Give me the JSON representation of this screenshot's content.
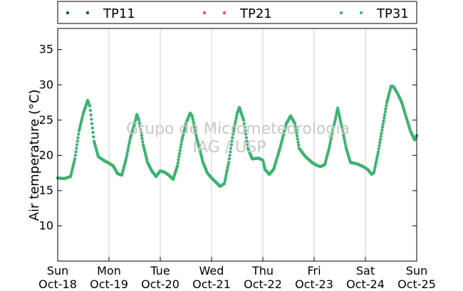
{
  "chart_data": {
    "type": "scatter",
    "title": "",
    "xlabel": "",
    "ylabel": "Air temperature (°C)",
    "ylim": [
      5,
      38
    ],
    "yticks": [
      10,
      15,
      20,
      25,
      30,
      35
    ],
    "xlim": [
      "2015-10-18 00:00",
      "2015-10-25 00:00"
    ],
    "x_tick_labels": [
      [
        "Sun",
        "Oct-18"
      ],
      [
        "Mon",
        "Oct-19"
      ],
      [
        "Tue",
        "Oct-20"
      ],
      [
        "Wed",
        "Oct-21"
      ],
      [
        "Thu",
        "Oct-22"
      ],
      [
        "Fri",
        "Oct-23"
      ],
      [
        "Sat",
        "Oct-24"
      ],
      [
        "Sun",
        "Oct-25"
      ]
    ],
    "grid": "vertical",
    "legend_position": "top",
    "watermark": [
      "Grupo de Micrometeorologia",
      "IAG / USP"
    ],
    "series": [
      {
        "name": "TP11",
        "color": "#1f4e79",
        "points": []
      },
      {
        "name": "TP21",
        "color": "#cd5c5c",
        "points": []
      },
      {
        "name": "TP31",
        "color": "#3cb371",
        "points": [
          [
            "10-18 00:00",
            16.8
          ],
          [
            "10-18 03:00",
            16.7
          ],
          [
            "10-18 06:00",
            17.0
          ],
          [
            "10-18 08:00",
            19.5
          ],
          [
            "10-18 10:00",
            23.5
          ],
          [
            "10-18 12:00",
            26.0
          ],
          [
            "10-18 14:00",
            27.8
          ],
          [
            "10-18 15:00",
            27.0
          ],
          [
            "10-18 17:00",
            22.0
          ],
          [
            "10-18 19:00",
            19.8
          ],
          [
            "10-18 22:00",
            19.2
          ],
          [
            "10-19 00:00",
            18.9
          ],
          [
            "10-19 02:00",
            18.5
          ],
          [
            "10-19 04:00",
            17.4
          ],
          [
            "10-19 06:00",
            17.2
          ],
          [
            "10-19 08:00",
            19.5
          ],
          [
            "10-19 10:00",
            22.5
          ],
          [
            "10-19 12:00",
            24.5
          ],
          [
            "10-19 13:00",
            25.8
          ],
          [
            "10-19 14:00",
            25.0
          ],
          [
            "10-19 16:00",
            21.5
          ],
          [
            "10-19 18:00",
            19.0
          ],
          [
            "10-19 20:00",
            17.8
          ],
          [
            "10-19 22:00",
            17.0
          ],
          [
            "10-20 00:00",
            17.8
          ],
          [
            "10-20 02:00",
            17.6
          ],
          [
            "10-20 04:00",
            17.2
          ],
          [
            "10-20 06:00",
            16.6
          ],
          [
            "10-20 08:00",
            18.5
          ],
          [
            "10-20 10:00",
            22.0
          ],
          [
            "10-20 12:00",
            24.5
          ],
          [
            "10-20 14:00",
            26.0
          ],
          [
            "10-20 15:00",
            25.5
          ],
          [
            "10-20 17:00",
            22.5
          ],
          [
            "10-20 20:00",
            19.0
          ],
          [
            "10-20 22:00",
            17.5
          ],
          [
            "10-21 00:00",
            16.8
          ],
          [
            "10-21 02:00",
            16.2
          ],
          [
            "10-21 04:00",
            15.6
          ],
          [
            "10-21 06:00",
            16.0
          ],
          [
            "10-21 08:00",
            19.0
          ],
          [
            "10-21 10:00",
            23.0
          ],
          [
            "10-21 12:00",
            26.0
          ],
          [
            "10-21 13:00",
            26.8
          ],
          [
            "10-21 15:00",
            25.0
          ],
          [
            "10-21 17:00",
            21.0
          ],
          [
            "10-21 19:00",
            19.5
          ],
          [
            "10-21 22:00",
            19.6
          ],
          [
            "10-22 00:00",
            19.3
          ],
          [
            "10-22 01:00",
            18.0
          ],
          [
            "10-22 03:00",
            17.3
          ],
          [
            "10-22 05:00",
            18.0
          ],
          [
            "10-22 08:00",
            21.0
          ],
          [
            "10-22 11:00",
            24.5
          ],
          [
            "10-22 13:00",
            25.6
          ],
          [
            "10-22 15:00",
            24.5
          ],
          [
            "10-22 17:00",
            21.0
          ],
          [
            "10-22 20:00",
            19.8
          ],
          [
            "10-22 23:00",
            19.0
          ],
          [
            "10-23 01:00",
            18.6
          ],
          [
            "10-23 03:00",
            18.4
          ],
          [
            "10-23 05:00",
            18.7
          ],
          [
            "10-23 07:00",
            21.0
          ],
          [
            "10-23 09:00",
            24.0
          ],
          [
            "10-23 10:00",
            25.2
          ],
          [
            "10-23 11:00",
            26.7
          ],
          [
            "10-23 13:00",
            24.0
          ],
          [
            "10-23 15:00",
            21.0
          ],
          [
            "10-23 17:00",
            19.0
          ],
          [
            "10-23 20:00",
            18.8
          ],
          [
            "10-23 23:00",
            18.4
          ],
          [
            "10-24 01:00",
            18.0
          ],
          [
            "10-24 03:00",
            17.3
          ],
          [
            "10-24 04:00",
            17.6
          ],
          [
            "10-24 06:00",
            20.5
          ],
          [
            "10-24 08:00",
            24.0
          ],
          [
            "10-24 10:00",
            27.5
          ],
          [
            "10-24 12:00",
            29.8
          ],
          [
            "10-24 13:00",
            29.8
          ],
          [
            "10-24 15:00",
            28.8
          ],
          [
            "10-24 17:00",
            27.5
          ],
          [
            "10-24 19:00",
            25.5
          ],
          [
            "10-24 21:00",
            23.5
          ],
          [
            "10-24 23:00",
            22.2
          ],
          [
            "10-25 00:00",
            22.8
          ]
        ]
      }
    ]
  }
}
